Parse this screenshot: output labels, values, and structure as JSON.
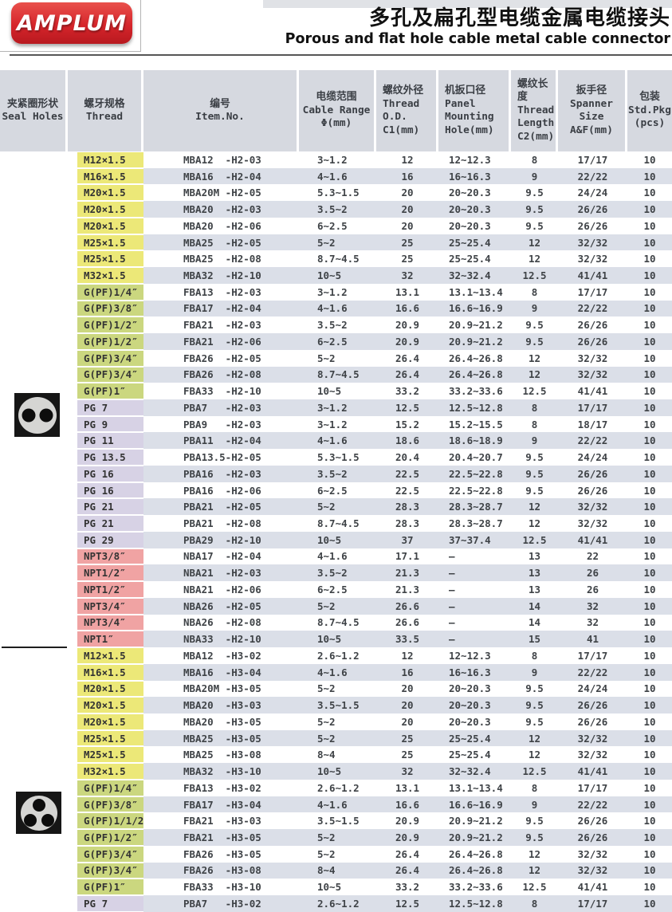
{
  "page": {
    "logo_text": "AMPLUM",
    "title_zh": "多孔及扁孔型电缆金属电缆接头",
    "title_en": "Porous and flat hole cable metal cable connector"
  },
  "colors": {
    "accent_red": "#d6252b",
    "header_bg": "#d6d9e0",
    "row_stripe": "#dbdfe8",
    "group_metric": "#ece878",
    "group_g_pf": "#cbd77f",
    "group_pg": "#d7d2e5",
    "group_npt": "#f0a3a3"
  },
  "seal_icons": [
    {
      "name": "seal-2hole-icon",
      "holes": 2,
      "applies_to": "H2 series"
    },
    {
      "name": "seal-3hole-icon",
      "holes": 3,
      "applies_to": "H3 series"
    }
  ],
  "table": {
    "headers": [
      {
        "text": "夹紧圈形状\nSeal Holes",
        "align": "center"
      },
      {
        "text": "螺牙规格\nThread",
        "align": "center"
      },
      {
        "text": "编号\nItem.No.",
        "align": "center"
      },
      {
        "text": "电缆范围\nCable Range\nΦ(mm)",
        "align": "center"
      },
      {
        "text": "螺纹外径\nThread\nO.D.\nC1(mm)",
        "align": "left"
      },
      {
        "text": "机扳口径\nPanel\nMounting\nHole(mm)",
        "align": "left"
      },
      {
        "text": "螺纹长度\nThread\nLength\nC2(mm)",
        "align": "left"
      },
      {
        "text": "扳手径\nSpanner Size\nA&F(mm)",
        "align": "center"
      },
      {
        "text": "包装\nStd.Pkg\n(pcs)",
        "align": "center"
      }
    ],
    "group_colors": {
      "metric": "#ece878",
      "g": "#cbd77f",
      "pg": "#d7d2e5",
      "npt": "#f0a3a3"
    },
    "rows": [
      {
        "group": "metric",
        "thread": "M12×1.5",
        "item": "MBA12  -H2-03",
        "cable_range": "3~1.2",
        "thread_od": "12",
        "panel_hole": "12~12.3",
        "thread_len": "8",
        "spanner": "17/17",
        "pkg": "10"
      },
      {
        "group": "metric",
        "thread": "M16×1.5",
        "item": "MBA16  -H2-04",
        "cable_range": "4~1.6",
        "thread_od": "16",
        "panel_hole": "16~16.3",
        "thread_len": "9",
        "spanner": "22/22",
        "pkg": "10"
      },
      {
        "group": "metric",
        "thread": "M20×1.5",
        "item": "MBA20M -H2-05",
        "cable_range": "5.3~1.5",
        "thread_od": "20",
        "panel_hole": "20~20.3",
        "thread_len": "9.5",
        "spanner": "24/24",
        "pkg": "10"
      },
      {
        "group": "metric",
        "thread": "M20×1.5",
        "item": "MBA20  -H2-03",
        "cable_range": "3.5~2",
        "thread_od": "20",
        "panel_hole": "20~20.3",
        "thread_len": "9.5",
        "spanner": "26/26",
        "pkg": "10"
      },
      {
        "group": "metric",
        "thread": "M20×1.5",
        "item": "MBA20  -H2-06",
        "cable_range": "6~2.5",
        "thread_od": "20",
        "panel_hole": "20~20.3",
        "thread_len": "9.5",
        "spanner": "26/26",
        "pkg": "10"
      },
      {
        "group": "metric",
        "thread": "M25×1.5",
        "item": "MBA25  -H2-05",
        "cable_range": "5~2",
        "thread_od": "25",
        "panel_hole": "25~25.4",
        "thread_len": "12",
        "spanner": "32/32",
        "pkg": "10"
      },
      {
        "group": "metric",
        "thread": "M25×1.5",
        "item": "MBA25  -H2-08",
        "cable_range": "8.7~4.5",
        "thread_od": "25",
        "panel_hole": "25~25.4",
        "thread_len": "12",
        "spanner": "32/32",
        "pkg": "10"
      },
      {
        "group": "metric",
        "thread": "M32×1.5",
        "item": "MBA32  -H2-10",
        "cable_range": "10~5",
        "thread_od": "32",
        "panel_hole": "32~32.4",
        "thread_len": "12.5",
        "spanner": "41/41",
        "pkg": "10"
      },
      {
        "group": "g",
        "thread": "G(PF)1/4″",
        "item": "FBA13  -H2-03",
        "cable_range": "3~1.2",
        "thread_od": "13.1",
        "panel_hole": "13.1~13.4",
        "thread_len": "8",
        "spanner": "17/17",
        "pkg": "10"
      },
      {
        "group": "g",
        "thread": "G(PF)3/8″",
        "item": "FBA17  -H2-04",
        "cable_range": "4~1.6",
        "thread_od": "16.6",
        "panel_hole": "16.6~16.9",
        "thread_len": "9",
        "spanner": "22/22",
        "pkg": "10"
      },
      {
        "group": "g",
        "thread": "G(PF)1/2″",
        "item": "FBA21  -H2-03",
        "cable_range": "3.5~2",
        "thread_od": "20.9",
        "panel_hole": "20.9~21.2",
        "thread_len": "9.5",
        "spanner": "26/26",
        "pkg": "10"
      },
      {
        "group": "g",
        "thread": "G(PF)1/2″",
        "item": "FBA21  -H2-06",
        "cable_range": "6~2.5",
        "thread_od": "20.9",
        "panel_hole": "20.9~21.2",
        "thread_len": "9.5",
        "spanner": "26/26",
        "pkg": "10"
      },
      {
        "group": "g",
        "thread": "G(PF)3/4″",
        "item": "FBA26  -H2-05",
        "cable_range": "5~2",
        "thread_od": "26.4",
        "panel_hole": "26.4~26.8",
        "thread_len": "12",
        "spanner": "32/32",
        "pkg": "10"
      },
      {
        "group": "g",
        "thread": "G(PF)3/4″",
        "item": "FBA26  -H2-08",
        "cable_range": "8.7~4.5",
        "thread_od": "26.4",
        "panel_hole": "26.4~26.8",
        "thread_len": "12",
        "spanner": "32/32",
        "pkg": "10"
      },
      {
        "group": "g",
        "thread": "G(PF)1″",
        "item": "FBA33  -H2-10",
        "cable_range": "10~5",
        "thread_od": "33.2",
        "panel_hole": "33.2~33.6",
        "thread_len": "12.5",
        "spanner": "41/41",
        "pkg": "10"
      },
      {
        "group": "pg",
        "thread": "PG 7",
        "item": "PBA7   -H2-03",
        "cable_range": "3~1.2",
        "thread_od": "12.5",
        "panel_hole": "12.5~12.8",
        "thread_len": "8",
        "spanner": "17/17",
        "pkg": "10"
      },
      {
        "group": "pg",
        "thread": "PG 9",
        "item": "PBA9   -H2-03",
        "cable_range": "3~1.2",
        "thread_od": "15.2",
        "panel_hole": "15.2~15.5",
        "thread_len": "8",
        "spanner": "18/17",
        "pkg": "10"
      },
      {
        "group": "pg",
        "thread": "PG 11",
        "item": "PBA11  -H2-04",
        "cable_range": "4~1.6",
        "thread_od": "18.6",
        "panel_hole": "18.6~18.9",
        "thread_len": "9",
        "spanner": "22/22",
        "pkg": "10"
      },
      {
        "group": "pg",
        "thread": "PG 13.5",
        "item": "PBA13.5-H2-05",
        "cable_range": "5.3~1.5",
        "thread_od": "20.4",
        "panel_hole": "20.4~20.7",
        "thread_len": "9.5",
        "spanner": "24/24",
        "pkg": "10"
      },
      {
        "group": "pg",
        "thread": "PG 16",
        "item": "PBA16  -H2-03",
        "cable_range": "3.5~2",
        "thread_od": "22.5",
        "panel_hole": "22.5~22.8",
        "thread_len": "9.5",
        "spanner": "26/26",
        "pkg": "10"
      },
      {
        "group": "pg",
        "thread": "PG 16",
        "item": "PBA16  -H2-06",
        "cable_range": "6~2.5",
        "thread_od": "22.5",
        "panel_hole": "22.5~22.8",
        "thread_len": "9.5",
        "spanner": "26/26",
        "pkg": "10"
      },
      {
        "group": "pg",
        "thread": "PG 21",
        "item": "PBA21  -H2-05",
        "cable_range": "5~2",
        "thread_od": "28.3",
        "panel_hole": "28.3~28.7",
        "thread_len": "12",
        "spanner": "32/32",
        "pkg": "10"
      },
      {
        "group": "pg",
        "thread": "PG 21",
        "item": "PBA21  -H2-08",
        "cable_range": "8.7~4.5",
        "thread_od": "28.3",
        "panel_hole": "28.3~28.7",
        "thread_len": "12",
        "spanner": "32/32",
        "pkg": "10"
      },
      {
        "group": "pg",
        "thread": "PG 29",
        "item": "PBA29  -H2-10",
        "cable_range": "10~5",
        "thread_od": "37",
        "panel_hole": "37~37.4",
        "thread_len": "12.5",
        "spanner": "41/41",
        "pkg": "10"
      },
      {
        "group": "npt",
        "thread": "NPT3/8″",
        "item": "NBA17  -H2-04",
        "cable_range": "4~1.6",
        "thread_od": "17.1",
        "panel_hole": "–",
        "thread_len": "13",
        "spanner": "22",
        "pkg": "10"
      },
      {
        "group": "npt",
        "thread": "NPT1/2″",
        "item": "NBA21  -H2-03",
        "cable_range": "3.5~2",
        "thread_od": "21.3",
        "panel_hole": "–",
        "thread_len": "13",
        "spanner": "26",
        "pkg": "10"
      },
      {
        "group": "npt",
        "thread": "NPT1/2″",
        "item": "NBA21  -H2-06",
        "cable_range": "6~2.5",
        "thread_od": "21.3",
        "panel_hole": "–",
        "thread_len": "13",
        "spanner": "26",
        "pkg": "10"
      },
      {
        "group": "npt",
        "thread": "NPT3/4″",
        "item": "NBA26  -H2-05",
        "cable_range": "5~2",
        "thread_od": "26.6",
        "panel_hole": "–",
        "thread_len": "14",
        "spanner": "32",
        "pkg": "10"
      },
      {
        "group": "npt",
        "thread": "NPT3/4″",
        "item": "NBA26  -H2-08",
        "cable_range": "8.7~4.5",
        "thread_od": "26.6",
        "panel_hole": "–",
        "thread_len": "14",
        "spanner": "32",
        "pkg": "10"
      },
      {
        "group": "npt",
        "thread": "NPT1″",
        "item": "NBA33  -H2-10",
        "cable_range": "10~5",
        "thread_od": "33.5",
        "panel_hole": "–",
        "thread_len": "15",
        "spanner": "41",
        "pkg": "10"
      },
      {
        "group": "metric",
        "thread": "M12×1.5",
        "item": "MBA12  -H3-02",
        "cable_range": "2.6~1.2",
        "thread_od": "12",
        "panel_hole": "12~12.3",
        "thread_len": "8",
        "spanner": "17/17",
        "pkg": "10"
      },
      {
        "group": "metric",
        "thread": "M16×1.5",
        "item": "MBA16  -H3-04",
        "cable_range": "4~1.6",
        "thread_od": "16",
        "panel_hole": "16~16.3",
        "thread_len": "9",
        "spanner": "22/22",
        "pkg": "10"
      },
      {
        "group": "metric",
        "thread": "M20×1.5",
        "item": "MBA20M -H3-05",
        "cable_range": "5~2",
        "thread_od": "20",
        "panel_hole": "20~20.3",
        "thread_len": "9.5",
        "spanner": "24/24",
        "pkg": "10"
      },
      {
        "group": "metric",
        "thread": "M20×1.5",
        "item": "MBA20  -H3-03",
        "cable_range": "3.5~1.5",
        "thread_od": "20",
        "panel_hole": "20~20.3",
        "thread_len": "9.5",
        "spanner": "26/26",
        "pkg": "10"
      },
      {
        "group": "metric",
        "thread": "M20×1.5",
        "item": "MBA20  -H3-05",
        "cable_range": "5~2",
        "thread_od": "20",
        "panel_hole": "20~20.3",
        "thread_len": "9.5",
        "spanner": "26/26",
        "pkg": "10"
      },
      {
        "group": "metric",
        "thread": "M25×1.5",
        "item": "MBA25  -H3-05",
        "cable_range": "5~2",
        "thread_od": "25",
        "panel_hole": "25~25.4",
        "thread_len": "12",
        "spanner": "32/32",
        "pkg": "10"
      },
      {
        "group": "metric",
        "thread": "M25×1.5",
        "item": "MBA25  -H3-08",
        "cable_range": "8~4",
        "thread_od": "25",
        "panel_hole": "25~25.4",
        "thread_len": "12",
        "spanner": "32/32",
        "pkg": "10"
      },
      {
        "group": "metric",
        "thread": "M32×1.5",
        "item": "MBA32  -H3-10",
        "cable_range": "10~5",
        "thread_od": "32",
        "panel_hole": "32~32.4",
        "thread_len": "12.5",
        "spanner": "41/41",
        "pkg": "10"
      },
      {
        "group": "g",
        "thread": "G(PF)1/4″",
        "item": "FBA13  -H3-02",
        "cable_range": "2.6~1.2",
        "thread_od": "13.1",
        "panel_hole": "13.1~13.4",
        "thread_len": "8",
        "spanner": "17/17",
        "pkg": "10"
      },
      {
        "group": "g",
        "thread": "G(PF)3/8″",
        "item": "FBA17  -H3-04",
        "cable_range": "4~1.6",
        "thread_od": "16.6",
        "panel_hole": "16.6~16.9",
        "thread_len": "9",
        "spanner": "22/22",
        "pkg": "10"
      },
      {
        "group": "g",
        "thread": "G(PF)1/1/2″",
        "item": "FBA21  -H3-03",
        "cable_range": "3.5~1.5",
        "thread_od": "20.9",
        "panel_hole": "20.9~21.2",
        "thread_len": "9.5",
        "spanner": "26/26",
        "pkg": "10"
      },
      {
        "group": "g",
        "thread": "G(PF)1/2″",
        "item": "FBA21  -H3-05",
        "cable_range": "5~2",
        "thread_od": "20.9",
        "panel_hole": "20.9~21.2",
        "thread_len": "9.5",
        "spanner": "26/26",
        "pkg": "10"
      },
      {
        "group": "g",
        "thread": "G(PF)3/4″",
        "item": "FBA26  -H3-05",
        "cable_range": "5~2",
        "thread_od": "26.4",
        "panel_hole": "26.4~26.8",
        "thread_len": "12",
        "spanner": "32/32",
        "pkg": "10"
      },
      {
        "group": "g",
        "thread": "G(PF)3/4″",
        "item": "FBA26  -H3-08",
        "cable_range": "8~4",
        "thread_od": "26.4",
        "panel_hole": "26.4~26.8",
        "thread_len": "12",
        "spanner": "32/32",
        "pkg": "10"
      },
      {
        "group": "g",
        "thread": "G(PF)1″",
        "item": "FBA33  -H3-10",
        "cable_range": "10~5",
        "thread_od": "33.2",
        "panel_hole": "33.2~33.6",
        "thread_len": "12.5",
        "spanner": "41/41",
        "pkg": "10"
      },
      {
        "group": "pg",
        "thread": "PG 7",
        "item": "PBA7   -H3-02",
        "cable_range": "2.6~1.2",
        "thread_od": "12.5",
        "panel_hole": "12.5~12.8",
        "thread_len": "8",
        "spanner": "17/17",
        "pkg": "10"
      }
    ]
  }
}
